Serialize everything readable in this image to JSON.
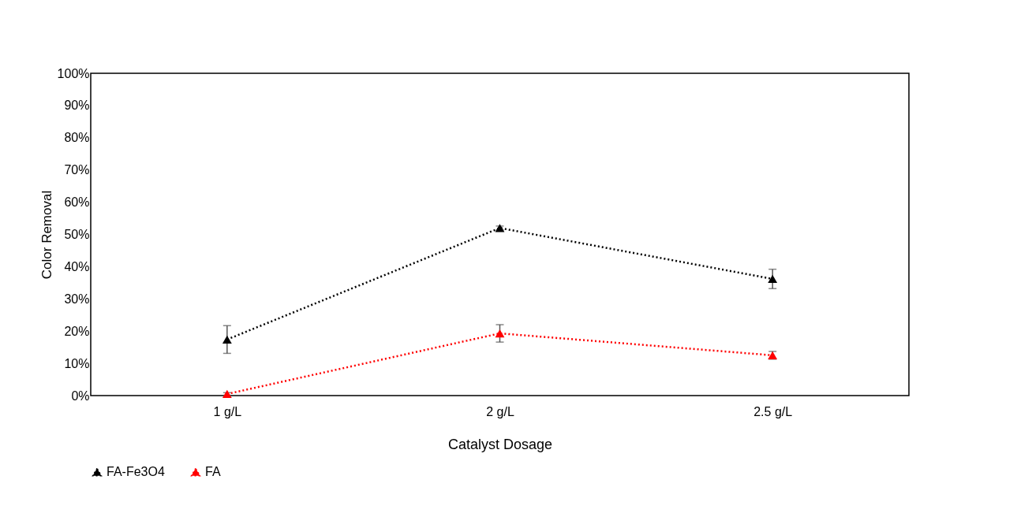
{
  "chart_data": {
    "type": "line",
    "xlabel": "Catalyst Dosage",
    "ylabel": "Color Removal",
    "categories": [
      "1 g/L",
      "2 g/L",
      "2.5 g/L"
    ],
    "series": [
      {
        "name": "FA-Fe3O4",
        "color": "#000000",
        "values": [
          17.4,
          52,
          36.2
        ],
        "errors": [
          4.3,
          0.6,
          3
        ]
      },
      {
        "name": "FA",
        "color": "#ff0000",
        "values": [
          0.5,
          19.3,
          12.5
        ],
        "errors": [
          0.4,
          2.7,
          1.2
        ]
      }
    ],
    "ylim": [
      0,
      100
    ],
    "yticks": [
      {
        "value": 0,
        "label": "0%"
      },
      {
        "value": 10,
        "label": "10%"
      },
      {
        "value": 20,
        "label": "20%"
      },
      {
        "value": 30,
        "label": "30%"
      },
      {
        "value": 40,
        "label": "40%"
      },
      {
        "value": 50,
        "label": "50%"
      },
      {
        "value": 60,
        "label": "60%"
      },
      {
        "value": 70,
        "label": "70%"
      },
      {
        "value": 80,
        "label": "80%"
      },
      {
        "value": 90,
        "label": "90%"
      },
      {
        "value": 100,
        "label": "100%"
      }
    ],
    "grid": false,
    "legend": "bottom",
    "marker": "triangle",
    "line_style": "dotted"
  }
}
